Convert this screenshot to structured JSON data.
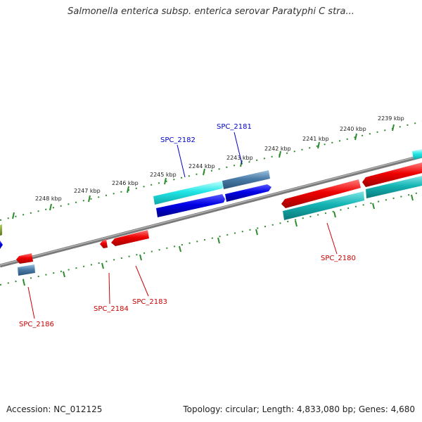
{
  "title": "Salmonella enterica subsp. enterica serovar Paratyphi C stra...",
  "footer": {
    "accession": "Accession: NC_012125",
    "topology": "Topology: circular; Length: 4,833,080 bp; Genes: 4,680"
  },
  "colors": {
    "backbone": "#808080",
    "tick": "#2e8b2e",
    "forward_label": "#0000cc",
    "reverse_label": "#cc0000",
    "red": "#ee0000",
    "blue": "#0000e6",
    "cyan": "#22e6e6",
    "teal": "#14b4b4",
    "steel": "#4a7ca8",
    "olive": "#7a9a28"
  },
  "axis": {
    "unit": "kbp",
    "tick_labels": [
      "2239 kbp",
      "2240 kbp",
      "2241 kbp",
      "2242 kbp",
      "2243 kbp",
      "2244 kbp",
      "2245 kbp",
      "2246 kbp",
      "2247 kbp",
      "2248 kbp"
    ]
  },
  "gene_labels": [
    {
      "text": "SPC_2182",
      "strand": "forward"
    },
    {
      "text": "SPC_2181",
      "strand": "forward"
    },
    {
      "text": "SPC_2180",
      "strand": "reverse"
    },
    {
      "text": "SPC_2184",
      "strand": "reverse"
    },
    {
      "text": "SPC_2183",
      "strand": "reverse"
    },
    {
      "text": "SPC_2186",
      "strand": "reverse"
    }
  ]
}
